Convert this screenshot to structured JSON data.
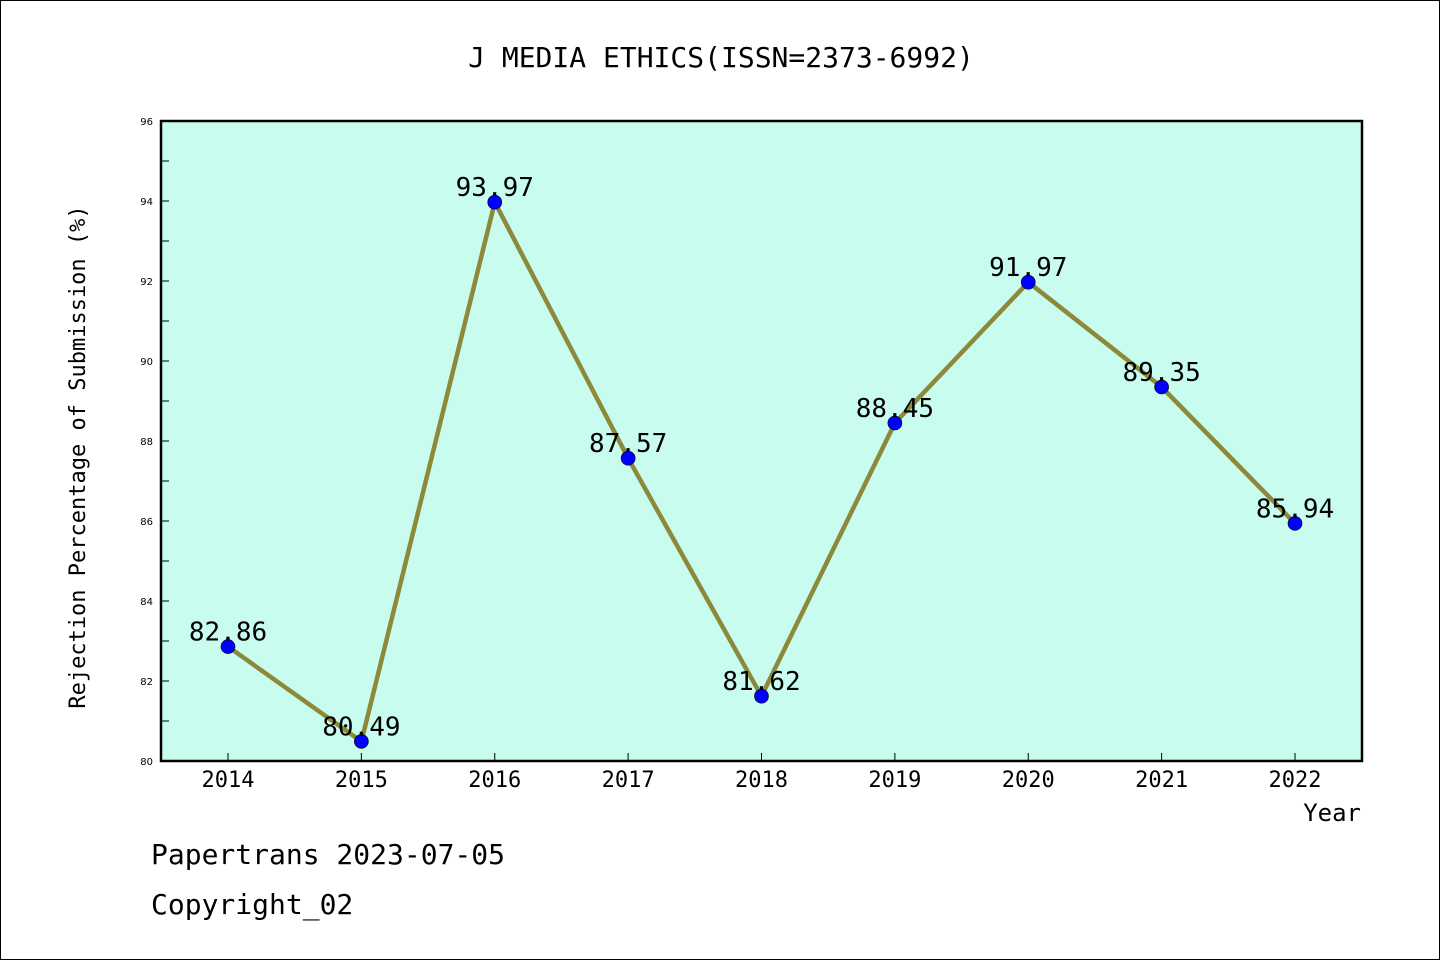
{
  "chart_data": {
    "type": "line",
    "title": "J MEDIA ETHICS(ISSN=2373-6992)",
    "xlabel": "Year",
    "ylabel": "Rejection Percentage of Submission (%)",
    "categories": [
      "2014",
      "2015",
      "2016",
      "2017",
      "2018",
      "2019",
      "2020",
      "2021",
      "2022"
    ],
    "series": [
      {
        "values": [
          82.86,
          80.49,
          93.97,
          87.57,
          81.62,
          88.45,
          91.97,
          89.35,
          85.94
        ]
      }
    ],
    "data_labels": [
      "82.86",
      "80.49",
      "93.97",
      "87.57",
      "81.62",
      "88.45",
      "91.97",
      "89.35",
      "85.94"
    ],
    "ylim": [
      80,
      96
    ],
    "yticks": [
      "80",
      "82",
      "84",
      "86",
      "88",
      "90",
      "92",
      "94",
      "96"
    ],
    "grid": false,
    "colors": {
      "plot_background": "#c8fcee",
      "line": "#8c8a3a",
      "marker": "#0000ff"
    }
  },
  "footer": {
    "line1": "Papertrans 2023-07-05",
    "line2": "Copyright_02"
  }
}
